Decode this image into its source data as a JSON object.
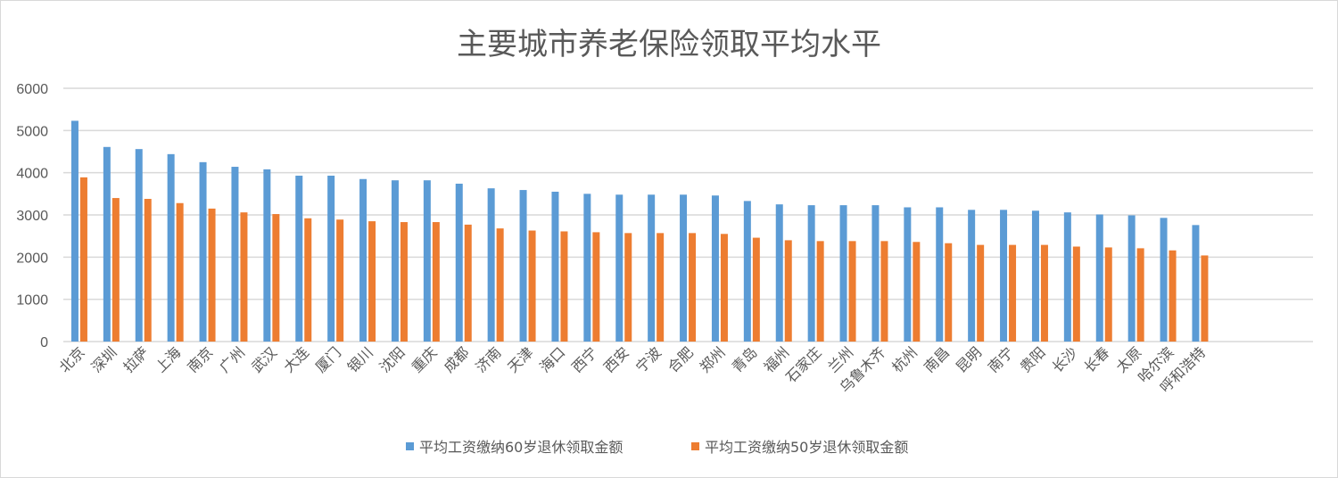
{
  "chart_data": {
    "type": "bar",
    "title": "主要城市养老保险领取平均水平",
    "xlabel": "",
    "ylabel": "",
    "ylim": [
      0,
      6000
    ],
    "yticks": [
      0,
      1000,
      2000,
      3000,
      4000,
      5000,
      6000
    ],
    "grid": true,
    "legend_position": "bottom",
    "categories": [
      "北京",
      "深圳",
      "拉萨",
      "上海",
      "南京",
      "广州",
      "武汉",
      "大连",
      "厦门",
      "银川",
      "沈阳",
      "重庆",
      "成都",
      "济南",
      "天津",
      "海口",
      "西宁",
      "西安",
      "宁波",
      "合肥",
      "郑州",
      "青岛",
      "福州",
      "石家庄",
      "兰州",
      "乌鲁木齐",
      "杭州",
      "南昌",
      "昆明",
      "南宁",
      "贵阳",
      "长沙",
      "长春",
      "太原",
      "哈尔滨",
      "呼和浩特"
    ],
    "series": [
      {
        "name": "平均工资缴纳60岁退休领取金额",
        "color": "#5b9bd5",
        "values": [
          5230,
          4610,
          4560,
          4440,
          4250,
          4140,
          4080,
          3930,
          3930,
          3850,
          3820,
          3820,
          3740,
          3630,
          3590,
          3550,
          3500,
          3480,
          3480,
          3480,
          3460,
          3330,
          3250,
          3230,
          3230,
          3230,
          3180,
          3180,
          3120,
          3120,
          3100,
          3060,
          3010,
          2990,
          2930,
          2760
        ]
      },
      {
        "name": "平均工资缴纳50岁退休领取金额",
        "color": "#ed7d31",
        "values": [
          3890,
          3400,
          3380,
          3280,
          3150,
          3060,
          3020,
          2920,
          2890,
          2850,
          2830,
          2830,
          2770,
          2680,
          2630,
          2610,
          2590,
          2570,
          2570,
          2570,
          2550,
          2460,
          2400,
          2380,
          2380,
          2380,
          2360,
          2330,
          2290,
          2290,
          2290,
          2250,
          2230,
          2210,
          2160,
          2040
        ]
      }
    ]
  }
}
